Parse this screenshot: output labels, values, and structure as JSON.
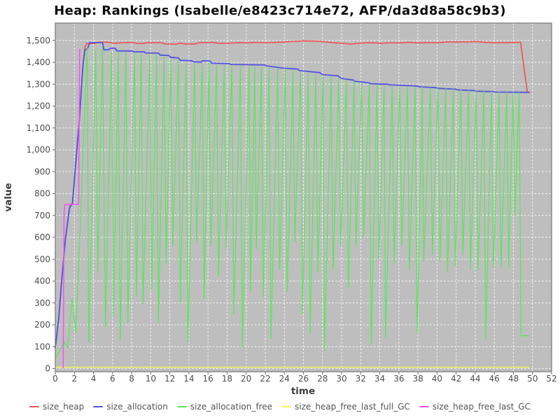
{
  "chart_data": {
    "type": "line",
    "title": "Heap: Rankings (Isabelle/e8423c714e72, AFP/da3d8a58c9b3)",
    "xlabel": "time",
    "ylabel": "value",
    "xlim": [
      0,
      52
    ],
    "ylim": [
      0,
      1575
    ],
    "x_ticks": [
      0,
      2,
      4,
      6,
      8,
      10,
      12,
      14,
      16,
      18,
      20,
      22,
      24,
      26,
      28,
      30,
      32,
      34,
      36,
      38,
      40,
      42,
      44,
      46,
      48,
      50,
      52
    ],
    "y_ticks": [
      0,
      100,
      200,
      300,
      400,
      500,
      600,
      700,
      800,
      900,
      1000,
      1100,
      1200,
      1300,
      1400,
      1500
    ],
    "grid": true,
    "legend_position": "bottom",
    "plot_bg_color": "#bebebe",
    "grid_color": "#ffffff",
    "border_color": "#7d7d7d",
    "series": [
      {
        "name": "size_heap",
        "color": "#ee5150",
        "width": 1.6,
        "points": [
          [
            0,
            100
          ],
          [
            0.35,
            230
          ],
          [
            0.7,
            420
          ],
          [
            1.05,
            590
          ],
          [
            1.35,
            692
          ],
          [
            1.5,
            742
          ],
          [
            1.8,
            758
          ],
          [
            2.1,
            920
          ],
          [
            2.5,
            1130
          ],
          [
            2.9,
            1390
          ],
          [
            3.1,
            1470
          ],
          [
            3.3,
            1486
          ],
          [
            4.1,
            1486
          ],
          [
            4.4,
            1492
          ],
          [
            5.6,
            1492
          ],
          [
            6.1,
            1487
          ],
          [
            7.1,
            1490
          ],
          [
            8.1,
            1491
          ],
          [
            8.6,
            1486
          ],
          [
            9.2,
            1486
          ],
          [
            9.7,
            1490
          ],
          [
            11,
            1490
          ],
          [
            11.6,
            1484
          ],
          [
            12.6,
            1483
          ],
          [
            13.1,
            1487
          ],
          [
            13.6,
            1484
          ],
          [
            14.6,
            1484
          ],
          [
            15.1,
            1490
          ],
          [
            16.6,
            1491
          ],
          [
            17.1,
            1487
          ],
          [
            18.1,
            1487
          ],
          [
            19.1,
            1490
          ],
          [
            20.1,
            1489
          ],
          [
            21.1,
            1491
          ],
          [
            22.1,
            1490
          ],
          [
            23.1,
            1491
          ],
          [
            24.1,
            1493
          ],
          [
            25.1,
            1496
          ],
          [
            26.1,
            1498
          ],
          [
            27.1,
            1497
          ],
          [
            28.1,
            1494
          ],
          [
            29.1,
            1490
          ],
          [
            30.1,
            1487
          ],
          [
            30.9,
            1483
          ],
          [
            31.6,
            1486
          ],
          [
            32.6,
            1489
          ],
          [
            33.6,
            1489
          ],
          [
            34.1,
            1487
          ],
          [
            35.1,
            1489
          ],
          [
            36.1,
            1489
          ],
          [
            37.1,
            1491
          ],
          [
            38.1,
            1489
          ],
          [
            39.1,
            1490
          ],
          [
            40.1,
            1490
          ],
          [
            41.1,
            1493
          ],
          [
            42.1,
            1493
          ],
          [
            43.1,
            1493
          ],
          [
            44.1,
            1495
          ],
          [
            45.1,
            1491
          ],
          [
            46.1,
            1490
          ],
          [
            47.1,
            1490
          ],
          [
            48.1,
            1491
          ],
          [
            48.75,
            1491
          ],
          [
            49.45,
            1266
          ],
          [
            49.7,
            1262
          ]
        ]
      },
      {
        "name": "size_allocation",
        "color": "#5353e0",
        "width": 1.8,
        "points": [
          [
            0,
            95
          ],
          [
            0.35,
            225
          ],
          [
            0.7,
            415
          ],
          [
            1.05,
            585
          ],
          [
            1.35,
            687
          ],
          [
            1.5,
            737
          ],
          [
            1.8,
            753
          ],
          [
            2.1,
            915
          ],
          [
            2.5,
            1125
          ],
          [
            2.9,
            1385
          ],
          [
            3.1,
            1455
          ],
          [
            3.4,
            1466
          ],
          [
            3.6,
            1490
          ],
          [
            4.95,
            1490
          ],
          [
            5.1,
            1457
          ],
          [
            5.6,
            1457
          ],
          [
            5.75,
            1464
          ],
          [
            6.3,
            1464
          ],
          [
            6.45,
            1452
          ],
          [
            8.05,
            1452
          ],
          [
            8.2,
            1448
          ],
          [
            9.3,
            1448
          ],
          [
            9.45,
            1443
          ],
          [
            10.8,
            1442
          ],
          [
            11,
            1433
          ],
          [
            11.9,
            1431
          ],
          [
            12.1,
            1423
          ],
          [
            12.9,
            1420
          ],
          [
            13.1,
            1409
          ],
          [
            14.3,
            1407
          ],
          [
            14.5,
            1402
          ],
          [
            15.3,
            1401
          ],
          [
            15.45,
            1407
          ],
          [
            16.2,
            1406
          ],
          [
            16.4,
            1396
          ],
          [
            18.2,
            1394
          ],
          [
            18.4,
            1390
          ],
          [
            20,
            1389
          ],
          [
            21.9,
            1388
          ],
          [
            22.1,
            1384
          ],
          [
            23.9,
            1373
          ],
          [
            25.4,
            1369
          ],
          [
            25.6,
            1362
          ],
          [
            27.7,
            1353
          ],
          [
            28,
            1344
          ],
          [
            29.6,
            1338
          ],
          [
            30,
            1326
          ],
          [
            31.2,
            1319
          ],
          [
            31.4,
            1313
          ],
          [
            32.8,
            1307
          ],
          [
            33.1,
            1302
          ],
          [
            34.8,
            1300
          ],
          [
            35,
            1297
          ],
          [
            37.9,
            1292
          ],
          [
            38.1,
            1288
          ],
          [
            39.9,
            1284
          ],
          [
            40.1,
            1281
          ],
          [
            41.9,
            1277
          ],
          [
            42.1,
            1274
          ],
          [
            43.9,
            1271
          ],
          [
            44.1,
            1268
          ],
          [
            45.9,
            1266
          ],
          [
            46.1,
            1264
          ],
          [
            48.9,
            1263
          ],
          [
            49.6,
            1262
          ]
        ]
      },
      {
        "name": "size_allocation_free",
        "color": "#55e955",
        "width": 1.2,
        "points": [
          [
            0,
            45
          ],
          [
            0.9,
            120
          ],
          [
            1.3,
            95
          ],
          [
            1.75,
            320
          ],
          [
            2.15,
            165
          ],
          [
            2.6,
            640
          ],
          [
            3,
            1100
          ],
          [
            3.35,
            1468
          ],
          [
            3.5,
            120
          ],
          [
            4.25,
            1462
          ],
          [
            4.45,
            440
          ],
          [
            4.95,
            1470
          ],
          [
            5.25,
            190
          ],
          [
            5.9,
            1448
          ],
          [
            6.1,
            240
          ],
          [
            6.6,
            1450
          ],
          [
            6.8,
            130
          ],
          [
            7.4,
            1442
          ],
          [
            7.6,
            210
          ],
          [
            8.3,
            1440
          ],
          [
            8.5,
            330
          ],
          [
            9,
            1438
          ],
          [
            9.2,
            295
          ],
          [
            9.9,
            1436
          ],
          [
            10.1,
            360
          ],
          [
            10.6,
            1434
          ],
          [
            10.8,
            210
          ],
          [
            11.4,
            1424
          ],
          [
            11.6,
            480
          ],
          [
            12.1,
            1416
          ],
          [
            12.3,
            560
          ],
          [
            12.9,
            1410
          ],
          [
            13.1,
            300
          ],
          [
            13.7,
            1398
          ],
          [
            13.9,
            120
          ],
          [
            14.6,
            1395
          ],
          [
            14.8,
            575
          ],
          [
            15.4,
            1394
          ],
          [
            15.6,
            320
          ],
          [
            16.1,
            1398
          ],
          [
            16.3,
            560
          ],
          [
            16.9,
            1388
          ],
          [
            17.1,
            420
          ],
          [
            17.7,
            1386
          ],
          [
            17.9,
            550
          ],
          [
            18.5,
            1383
          ],
          [
            18.7,
            250
          ],
          [
            19.4,
            1381
          ],
          [
            19.6,
            100
          ],
          [
            20.3,
            1380
          ],
          [
            20.45,
            350
          ],
          [
            20.9,
            1379
          ],
          [
            21.05,
            545
          ],
          [
            21.6,
            1379
          ],
          [
            21.8,
            330
          ],
          [
            22.4,
            1376
          ],
          [
            22.6,
            140
          ],
          [
            23.3,
            1371
          ],
          [
            23.5,
            450
          ],
          [
            24.1,
            1367
          ],
          [
            24.3,
            350
          ],
          [
            24.9,
            1362
          ],
          [
            25.1,
            580
          ],
          [
            25.7,
            1356
          ],
          [
            25.9,
            250
          ],
          [
            26.5,
            1350
          ],
          [
            26.7,
            160
          ],
          [
            27.3,
            1346
          ],
          [
            27.5,
            440
          ],
          [
            28.05,
            1338
          ],
          [
            28.2,
            85
          ],
          [
            28.9,
            1332
          ],
          [
            29.1,
            450
          ],
          [
            29.7,
            1327
          ],
          [
            29.9,
            560
          ],
          [
            30.5,
            1320
          ],
          [
            30.7,
            370
          ],
          [
            31.3,
            1313
          ],
          [
            31.5,
            560
          ],
          [
            32.1,
            1307
          ],
          [
            32.3,
            600
          ],
          [
            32.9,
            1301
          ],
          [
            33.1,
            110
          ],
          [
            33.7,
            1297
          ],
          [
            33.9,
            500
          ],
          [
            34.45,
            1295
          ],
          [
            34.6,
            145
          ],
          [
            35.3,
            1293
          ],
          [
            35.5,
            480
          ],
          [
            36.1,
            1291
          ],
          [
            36.3,
            560
          ],
          [
            36.9,
            1289
          ],
          [
            37.1,
            450
          ],
          [
            37.7,
            1288
          ],
          [
            37.9,
            160
          ],
          [
            38.45,
            1286
          ],
          [
            38.6,
            490
          ],
          [
            39.3,
            1284
          ],
          [
            39.5,
            520
          ],
          [
            40.1,
            1281
          ],
          [
            40.3,
            490
          ],
          [
            40.9,
            1279
          ],
          [
            41.1,
            445
          ],
          [
            41.7,
            1277
          ],
          [
            41.9,
            470
          ],
          [
            42.5,
            1274
          ],
          [
            42.7,
            520
          ],
          [
            43.3,
            1272
          ],
          [
            43.5,
            455
          ],
          [
            44.1,
            1269
          ],
          [
            44.3,
            450
          ],
          [
            44.9,
            1267
          ],
          [
            45.1,
            140
          ],
          [
            45.7,
            1265
          ],
          [
            45.9,
            465
          ],
          [
            46.5,
            1264
          ],
          [
            46.7,
            463
          ],
          [
            47.3,
            1263
          ],
          [
            47.5,
            460
          ],
          [
            47.95,
            1262
          ],
          [
            48.15,
            700
          ],
          [
            48.6,
            1262
          ],
          [
            48.8,
            150
          ],
          [
            49.6,
            150
          ]
        ]
      },
      {
        "name": "size_heap_free_last_full_GC",
        "color": "#f5f559",
        "width": 1.4,
        "points": [
          [
            0,
            6
          ],
          [
            49.6,
            6
          ]
        ]
      },
      {
        "name": "size_heap_free_last_GC",
        "color": "#f255f2",
        "width": 1.5,
        "points": [
          [
            0.82,
            2
          ],
          [
            0.92,
            700
          ],
          [
            1,
            750
          ],
          [
            2.45,
            750
          ],
          [
            2.55,
            1460
          ]
        ]
      }
    ]
  }
}
